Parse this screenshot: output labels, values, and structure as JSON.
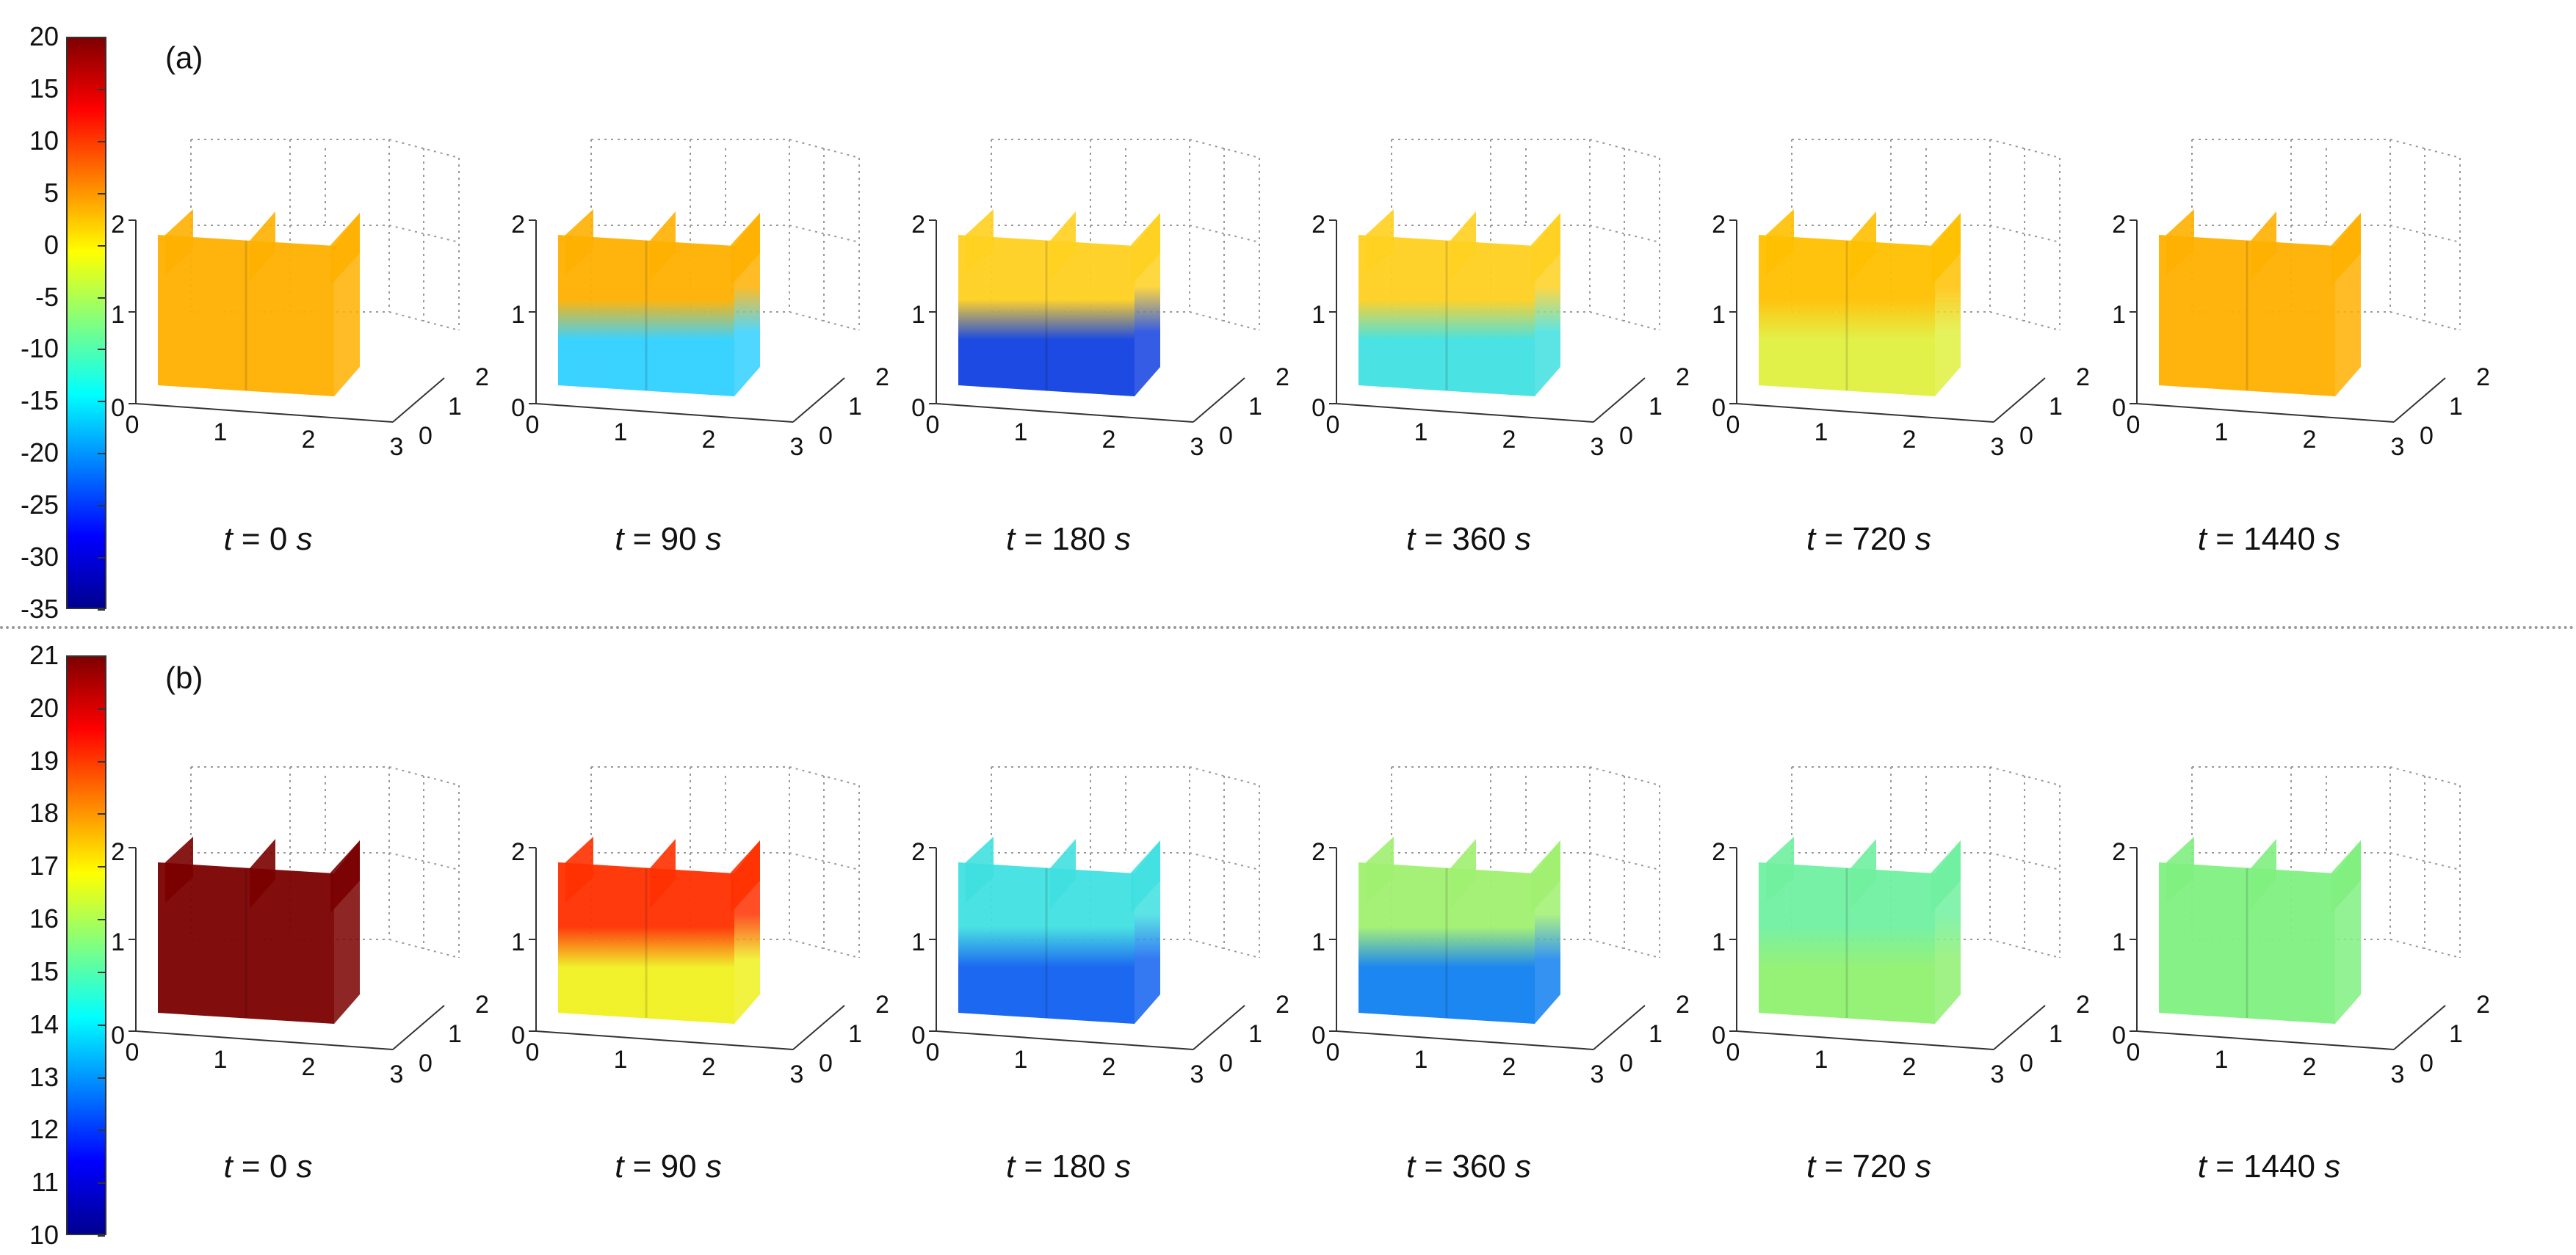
{
  "rows": [
    {
      "id": "a",
      "label": "(a)",
      "colorbar": {
        "ticks": [
          "20",
          "15",
          "10",
          "5",
          "0",
          "-5",
          "-10",
          "-15",
          "-20",
          "-25",
          "-30",
          "-35"
        ],
        "min": -35,
        "max": 20,
        "gradient": [
          "#7f0000",
          "#ff0000",
          "#ff8000",
          "#ffff00",
          "#80ff80",
          "#00ffff",
          "#0080ff",
          "#0000ff",
          "#00008f"
        ]
      },
      "panels": [
        {
          "time": "t = 0 s",
          "t": "t",
          "eq": " = 0 ",
          "unit": "s",
          "top_color": "#ffb000",
          "bottom_color": "#ffb000"
        },
        {
          "time": "t = 90 s",
          "t": "t",
          "eq": " = 90 ",
          "unit": "s",
          "top_color": "#ffb000",
          "bottom_color": "#30d0ff"
        },
        {
          "time": "t = 180 s",
          "t": "t",
          "eq": " = 180 ",
          "unit": "s",
          "top_color": "#ffd020",
          "bottom_color": "#1040e0"
        },
        {
          "time": "t = 360 s",
          "t": "t",
          "eq": " = 360 ",
          "unit": "s",
          "top_color": "#ffd020",
          "bottom_color": "#40e0e0"
        },
        {
          "time": "t = 720 s",
          "t": "t",
          "eq": " = 720 ",
          "unit": "s",
          "top_color": "#ffc000",
          "bottom_color": "#e0f040"
        },
        {
          "time": "t = 1440 s",
          "t": "t",
          "eq": " = 1440 ",
          "unit": "s",
          "top_color": "#ffb000",
          "bottom_color": "#ffb000"
        }
      ]
    },
    {
      "id": "b",
      "label": "(b)",
      "colorbar": {
        "ticks": [
          "21",
          "20",
          "19",
          "18",
          "17",
          "16",
          "15",
          "14",
          "13",
          "12",
          "11",
          "10"
        ],
        "min": 10,
        "max": 21,
        "gradient": [
          "#7f0000",
          "#ff0000",
          "#ff8000",
          "#ffff00",
          "#80ff80",
          "#00ffff",
          "#0080ff",
          "#0000ff",
          "#00008f"
        ]
      },
      "panels": [
        {
          "time": "t = 0 s",
          "t": "t",
          "eq": " = 0 ",
          "unit": "s",
          "top_color": "#7a0000",
          "bottom_color": "#7a0000"
        },
        {
          "time": "t = 90 s",
          "t": "t",
          "eq": " = 90 ",
          "unit": "s",
          "top_color": "#ff3000",
          "bottom_color": "#f0f020"
        },
        {
          "time": "t = 180 s",
          "t": "t",
          "eq": " = 180 ",
          "unit": "s",
          "top_color": "#40e0e0",
          "bottom_color": "#1060f0"
        },
        {
          "time": "t = 360 s",
          "t": "t",
          "eq": " = 360 ",
          "unit": "s",
          "top_color": "#a0f070",
          "bottom_color": "#1080f0"
        },
        {
          "time": "t = 720 s",
          "t": "t",
          "eq": " = 720 ",
          "unit": "s",
          "top_color": "#70f0a0",
          "bottom_color": "#90f070"
        },
        {
          "time": "t = 1440 s",
          "t": "t",
          "eq": " = 1440 ",
          "unit": "s",
          "top_color": "#80f080",
          "bottom_color": "#80f080"
        }
      ]
    }
  ],
  "axes": {
    "z_ticks": [
      "0",
      "1",
      "2"
    ],
    "x_ticks": [
      "0",
      "1",
      "2",
      "3"
    ],
    "y_ticks": [
      "0",
      "1",
      "2"
    ]
  }
}
